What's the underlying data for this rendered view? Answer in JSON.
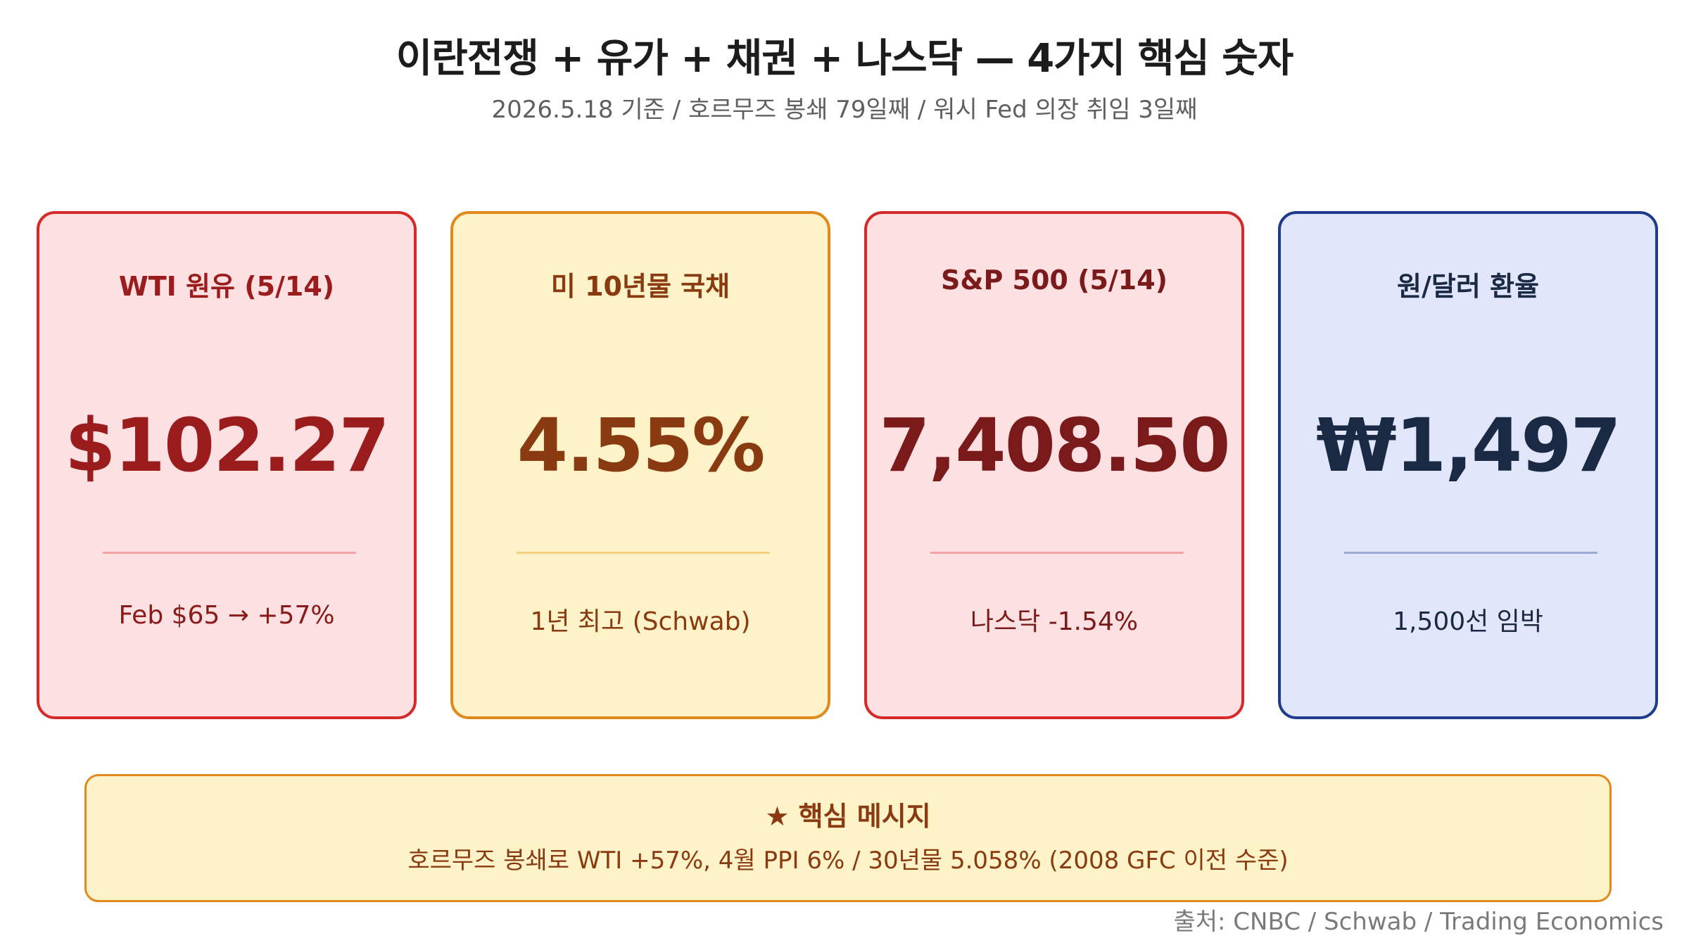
{
  "header": {
    "title": "이란전쟁 + 유가 + 채권 + 나스닥 — 4가지 핵심 숫자",
    "subtitle": "2026.5.18 기준 / 호르무즈 봉쇄 79일째 / 워시 Fed 의장 취임 3일째"
  },
  "cards": [
    {
      "label": "WTI 원유 (5/14)",
      "value": "$102.27",
      "note": "Feb $65 → +57%",
      "bg": "#fde0e1",
      "border": "#d42a2a",
      "label_color": "#9b1c1c",
      "value_color": "#9b1c1c",
      "note_color": "#8b1a1a",
      "divider": "#f2a3a3"
    },
    {
      "label": "미 10년물 국채",
      "value": "4.55%",
      "note": "1년 최고 (Schwab)",
      "bg": "#fef2c8",
      "border": "#e08a1e",
      "label_color": "#8a3a10",
      "value_color": "#8a3a10",
      "note_color": "#8a3a10",
      "divider": "#f5cf82"
    },
    {
      "label": "S&P 500 (5/14)",
      "value": "7,408.50",
      "note": "나스닥 -1.54%",
      "bg": "#fde0e1",
      "border": "#d42a2a",
      "label_color": "#7a1a1a",
      "value_color": "#7a1a1a",
      "note_color": "#7a1a1a",
      "divider": "#f2a3a3"
    },
    {
      "label": "원/달러 환율",
      "value": "₩1,497",
      "note": "1,500선 임박",
      "bg": "#e1e6fb",
      "border": "#1f3c8c",
      "label_color": "#1a2a44",
      "value_color": "#1a2a44",
      "note_color": "#1a2a44",
      "divider": "#9aaad4"
    }
  ],
  "key_message": {
    "title": "★ 핵심 메시지",
    "text": "호르무즈 봉쇄로 WTI +57%, 4월 PPI 6% / 30년물 5.058% (2008 GFC 이전 수준)"
  },
  "source": "출처: CNBC / Schwab / Trading Economics"
}
